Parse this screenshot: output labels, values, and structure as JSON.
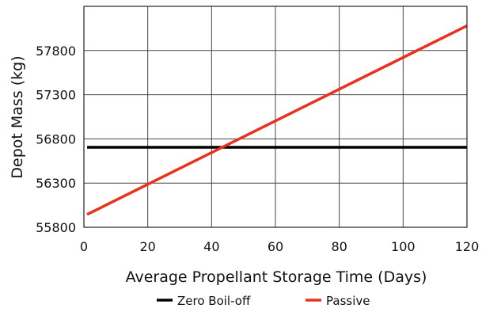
{
  "chart_data": {
    "type": "line",
    "title": "",
    "xlabel": "Average Propellant Storage Time (Days)",
    "ylabel": "Depot Mass (kg)",
    "xlim": [
      0,
      120
    ],
    "ylim": [
      55800,
      58300
    ],
    "xticks": [
      0,
      20,
      40,
      60,
      80,
      100,
      120
    ],
    "yticks": [
      55800,
      56300,
      56800,
      57300,
      57800
    ],
    "grid": true,
    "legend_position": "bottom",
    "series": [
      {
        "name": "Zero Boil-off",
        "color": "#000000",
        "x": [
          1,
          120
        ],
        "y": [
          56705,
          56705
        ]
      },
      {
        "name": "Passive",
        "color": "#e8321e",
        "x": [
          1,
          120
        ],
        "y": [
          55945,
          58080
        ]
      }
    ]
  }
}
